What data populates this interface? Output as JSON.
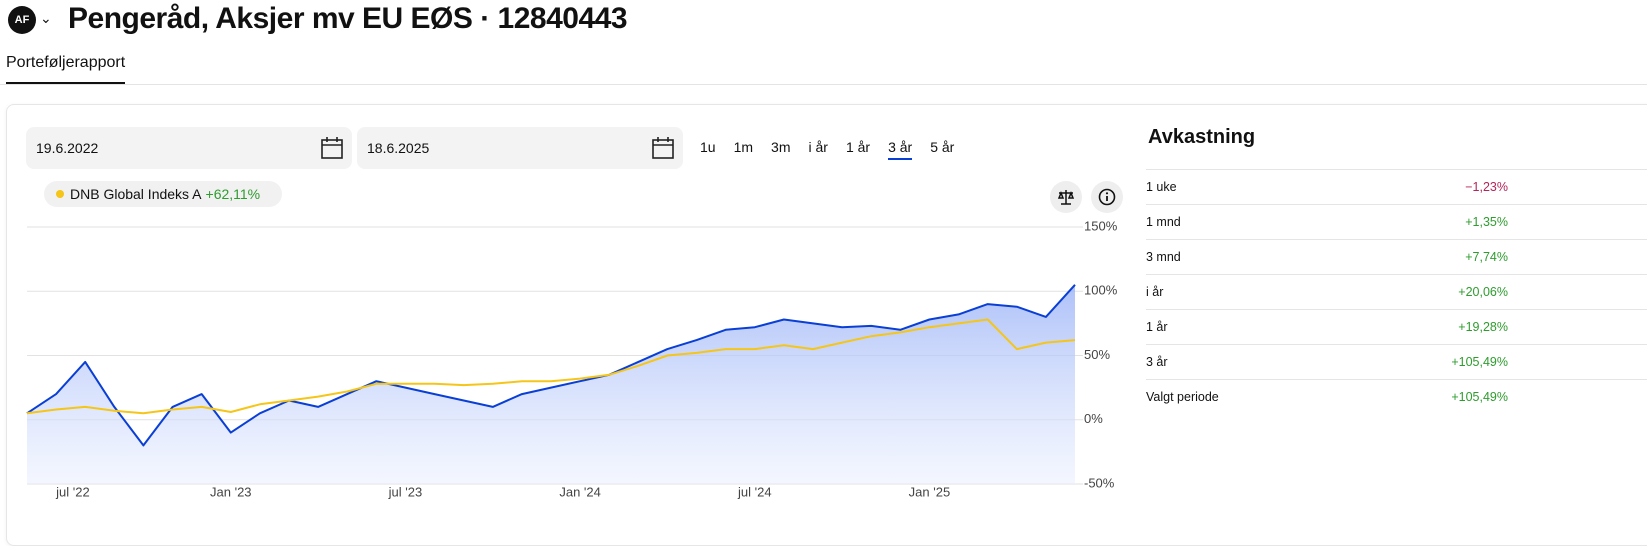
{
  "header": {
    "avatar": "AF",
    "title": "Pengeråd, Aksjer mv EU EØS · 12840443"
  },
  "tabs": [
    "Porteføljerapport"
  ],
  "date_from": "19.6.2022",
  "date_to": "18.6.2025",
  "ranges": [
    "1u",
    "1m",
    "3m",
    "i år",
    "1 år",
    "3 år",
    "5 år"
  ],
  "selected_range": 5,
  "returns": {
    "title": "Avkastning",
    "rows": [
      [
        "1 uke",
        "−1,23%"
      ],
      [
        "1 mnd",
        "+1,35%"
      ],
      [
        "3 mnd",
        "+7,74%"
      ],
      [
        "i år",
        "+20,06%"
      ],
      [
        "1 år",
        "+19,28%"
      ],
      [
        "3 år",
        "+105,49%"
      ],
      [
        "Valgt periode",
        "+105,49%"
      ]
    ]
  },
  "chart_data": {
    "type": "line",
    "x": [
      "2022-06",
      "2022-07",
      "2022-08",
      "2022-09",
      "2022-10",
      "2022-11",
      "2022-12",
      "2023-01",
      "2023-02",
      "2023-03",
      "2023-04",
      "2023-05",
      "2023-06",
      "2023-07",
      "2023-08",
      "2023-09",
      "2023-10",
      "2023-11",
      "2023-12",
      "2024-01",
      "2024-02",
      "2024-03",
      "2024-04",
      "2024-05",
      "2024-06",
      "2024-07",
      "2024-08",
      "2024-09",
      "2024-10",
      "2024-11",
      "2024-12",
      "2025-01",
      "2025-02",
      "2025-03",
      "2025-04",
      "2025-05",
      "2025-06"
    ],
    "series": [
      {
        "color": "#0a3fd6",
        "area": true,
        "values": [
          5,
          20,
          45,
          10,
          -20,
          10,
          20,
          -10,
          5,
          15,
          10,
          20,
          30,
          25,
          20,
          15,
          10,
          20,
          25,
          30,
          35,
          45,
          55,
          62,
          70,
          72,
          78,
          75,
          72,
          73,
          70,
          78,
          82,
          90,
          88,
          80,
          105
        ]
      },
      {
        "name": "DNB Global Indeks A",
        "change": "+62,11%",
        "color": "#f5c518",
        "values": [
          5,
          8,
          10,
          7,
          5,
          8,
          10,
          6,
          12,
          15,
          18,
          22,
          28,
          28,
          28,
          27,
          28,
          30,
          30,
          32,
          35,
          42,
          50,
          52,
          55,
          55,
          58,
          55,
          60,
          65,
          68,
          72,
          75,
          78,
          55,
          60,
          62
        ]
      }
    ],
    "xlim": [
      "2022-06",
      "2025-06"
    ],
    "xticks": [
      {
        "value": "2022-07",
        "label": "jul '22"
      },
      {
        "value": "2023-01",
        "label": "Jan '23"
      },
      {
        "value": "2023-07",
        "label": "jul '23"
      },
      {
        "value": "2024-01",
        "label": "Jan '24"
      },
      {
        "value": "2024-07",
        "label": "jul '24"
      },
      {
        "value": "2025-01",
        "label": "Jan '25"
      }
    ],
    "ylim": [
      -50,
      150
    ],
    "yticks": [
      {
        "value": 150,
        "label": "150%"
      },
      {
        "value": 100,
        "label": "100%"
      },
      {
        "value": 50,
        "label": "50%"
      },
      {
        "value": 0,
        "label": "0%"
      },
      {
        "value": -50,
        "label": "-50%"
      }
    ],
    "grid": true
  }
}
